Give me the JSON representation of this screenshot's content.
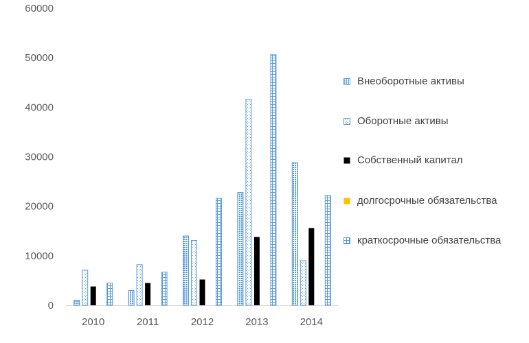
{
  "chart_data": {
    "type": "bar",
    "categories": [
      "2010",
      "2011",
      "2012",
      "2013",
      "2014"
    ],
    "series": [
      {
        "name": "Внеоборотные активы",
        "values": [
          1000,
          3000,
          14000,
          22800,
          28800
        ],
        "color": "#5B9BD5",
        "pattern": "dotted-dense"
      },
      {
        "name": "Оборотные активы",
        "values": [
          7100,
          8200,
          13100,
          41600,
          9000
        ],
        "color": "#5B9BD5",
        "pattern": "dotted-sparse"
      },
      {
        "name": "Собственный капитал",
        "values": [
          3800,
          4500,
          5200,
          13800,
          15600
        ],
        "color": "#000000",
        "pattern": "solid"
      },
      {
        "name": "долгосрочные обязательства",
        "values": [
          0,
          0,
          0,
          0,
          0
        ],
        "color": "#FFC000",
        "pattern": "solid"
      },
      {
        "name": "краткосрочные обязательства",
        "values": [
          4500,
          6700,
          21600,
          50600,
          22200
        ],
        "color": "#5B9BD5",
        "pattern": "grid"
      }
    ],
    "y_ticks": [
      "0",
      "10000",
      "20000",
      "30000",
      "40000",
      "50000",
      "60000"
    ],
    "ylim": [
      0,
      60000
    ],
    "grid": false,
    "legend_position": "right",
    "title": "",
    "xlabel": "",
    "ylabel": ""
  }
}
